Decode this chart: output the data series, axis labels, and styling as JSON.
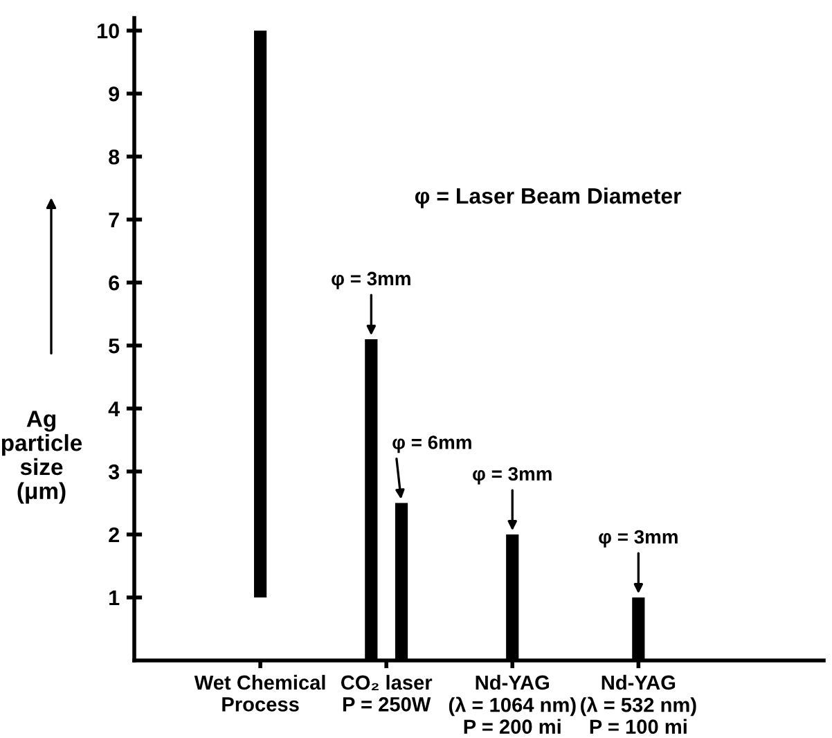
{
  "chart_data": {
    "type": "bar",
    "ylabel": "Ag\nparticle\nsize\n(μm)",
    "categories": [
      "Wet Chemical\nProcess",
      "CO₂ laser\nP = 250W",
      "Nd-YAG\n(λ = 1064 nm)\nP = 200 mi",
      "Nd-YAG\n(λ = 532 nm)\nP = 100 mi"
    ],
    "series": [
      {
        "color": "#000000",
        "values": [
          9,
          5.1,
          2,
          1
        ],
        "base": [
          1,
          0,
          0,
          0
        ]
      },
      {
        "color": "#000000",
        "values": [
          null,
          2.5,
          null,
          null
        ]
      }
    ],
    "ylim": [
      0,
      10.2
    ],
    "yticks": [
      1,
      2,
      3,
      4,
      5,
      6,
      7,
      8,
      9,
      10
    ],
    "grid": false,
    "legend": false,
    "annotations": [
      "φ = Laser Beam Diameter",
      "φ = 3mm",
      "φ = 6mm",
      "φ = 3mm",
      "φ = 3mm"
    ]
  }
}
